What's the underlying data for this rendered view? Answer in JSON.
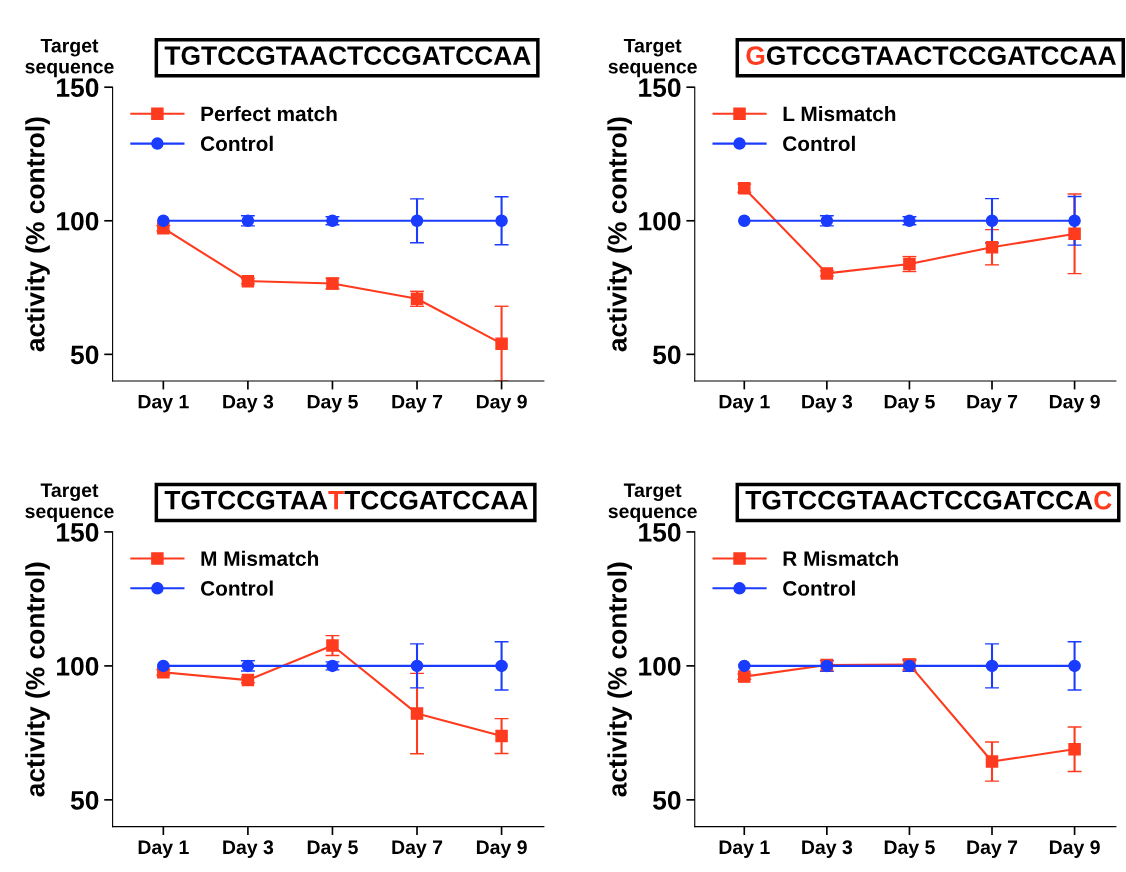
{
  "chart_data": [
    {
      "type": "line",
      "title": "TGTCCGTAACTCCGATCCAA",
      "subtitle": "Target\nsequence",
      "ylabel": "activity (% control)",
      "categories": [
        "Day 1",
        "Day 3",
        "Day 5",
        "Day 7",
        "Day 9"
      ],
      "ylim": [
        40,
        150
      ],
      "yticks": [
        50,
        100,
        150
      ],
      "legend": "top left",
      "grid": false,
      "series": [
        {
          "name": "Perfect match",
          "color": "#ff3b1f",
          "marker": "square",
          "values": [
            97.2,
            77.4,
            76.5,
            70.8,
            54
          ],
          "errors": [
            1,
            1,
            2,
            2.8,
            14
          ]
        },
        {
          "name": "Control",
          "color": "#1a3cff",
          "marker": "circle",
          "values": [
            100,
            100,
            100,
            100,
            100
          ],
          "errors": [
            null,
            1.9,
            1.5,
            8.2,
            9
          ]
        }
      ]
    },
    {
      "type": "line",
      "title": "GGTCCGTAACTCCGATCCAA",
      "subtitle": "Target\nsequence",
      "ylabel": "activity (% control)",
      "categories": [
        "Day 1",
        "Day 3",
        "Day 5",
        "Day 7",
        "Day 9"
      ],
      "ylim": [
        40,
        150
      ],
      "yticks": [
        50,
        100,
        150
      ],
      "legend": "top left",
      "grid": false,
      "series": [
        {
          "name": "L Mismatch",
          "color": "#ff3b1f",
          "marker": "square",
          "values": [
            112.2,
            80.3,
            83.8,
            90.1,
            95.1
          ],
          "errors": [
            1.5,
            1,
            2.8,
            6.6,
            14.9
          ]
        },
        {
          "name": "Control",
          "color": "#1a3cff",
          "marker": "circle",
          "values": [
            100,
            100,
            100,
            100,
            100
          ],
          "errors": [
            null,
            1.9,
            1.5,
            8.3,
            9.1
          ]
        }
      ]
    },
    {
      "type": "line",
      "title": "TGTCCGTAATTCCGATCCAA",
      "subtitle": "Target\nsequence",
      "ylabel": "activity (% control)",
      "categories": [
        "Day 1",
        "Day 3",
        "Day 5",
        "Day 7",
        "Day 9"
      ],
      "ylim": [
        40,
        150
      ],
      "yticks": [
        50,
        100,
        150
      ],
      "legend": "top left",
      "grid": false,
      "series": [
        {
          "name": "M Mismatch",
          "color": "#ff3b1f",
          "marker": "square",
          "values": [
            97.6,
            94.7,
            107.6,
            82.2,
            73.8
          ],
          "errors": [
            1,
            1,
            3.7,
            15,
            6.5
          ]
        },
        {
          "name": "Control",
          "color": "#1a3cff",
          "marker": "circle",
          "values": [
            100,
            100,
            100,
            100,
            100
          ],
          "errors": [
            null,
            1.9,
            1.5,
            8.2,
            9
          ]
        }
      ]
    },
    {
      "type": "line",
      "title": "TGTCCGTAACTCCGATCCAC",
      "subtitle": "Target\nsequence",
      "ylabel": "activity (% control)",
      "categories": [
        "Day 1",
        "Day 3",
        "Day 5",
        "Day 7",
        "Day 9"
      ],
      "ylim": [
        40,
        150
      ],
      "yticks": [
        50,
        100,
        150
      ],
      "legend": "top left",
      "grid": false,
      "series": [
        {
          "name": "R Mismatch",
          "color": "#ff3b1f",
          "marker": "square",
          "values": [
            96,
            100.3,
            100.5,
            64.3,
            68.9
          ],
          "errors": [
            1,
            null,
            2,
            7.3,
            8.3
          ]
        },
        {
          "name": "Control",
          "color": "#1a3cff",
          "marker": "circle",
          "values": [
            100,
            100,
            100,
            100,
            100
          ],
          "errors": [
            null,
            2,
            2,
            8.2,
            9
          ]
        }
      ]
    }
  ]
}
